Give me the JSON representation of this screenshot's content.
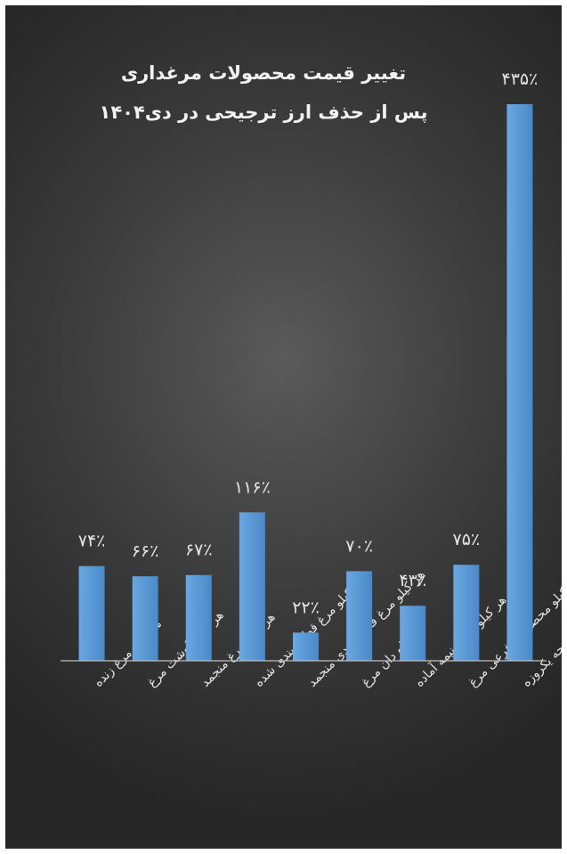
{
  "chart_data": {
    "type": "bar",
    "title": "تغییر قیمت محصولات مرغداری",
    "subtitle": "پس از حذف ارز ترجیحی در دی۱۴۰۴",
    "xlabel": "",
    "ylabel": "",
    "grid": false,
    "legend": "none",
    "ylim": [
      0,
      435
    ],
    "categories": [
      "هر کیلو مرغ زنده",
      "هر کیلو گوشت مرغ",
      "هر کیلو مرغ منجمد",
      "هر کیلو مرغ قطعه بندی شده",
      "هر کیلو مرغ قطعه بندی منجمد",
      "هر کیلو دان مرغ",
      "هر کیلو غذای نیمه آماده",
      "هر کیلو محصولات فرعی مرغ",
      "هر قطعه جوجه یکروزه"
    ],
    "values": [
      74,
      66,
      67,
      116,
      22,
      70,
      43,
      75,
      435
    ],
    "value_labels": [
      "۷۴٪",
      "۶۶٪",
      "۶۷٪",
      "۱۱۶٪",
      "۲۲٪",
      "۷۰٪",
      "۴۳٪",
      "۷۵٪",
      "۴۳۵٪"
    ],
    "colors": {
      "bar": "#5b9bd5",
      "background": "#3a3a3a",
      "text": "#e6e6e6",
      "axis": "#bfbfbf"
    }
  }
}
